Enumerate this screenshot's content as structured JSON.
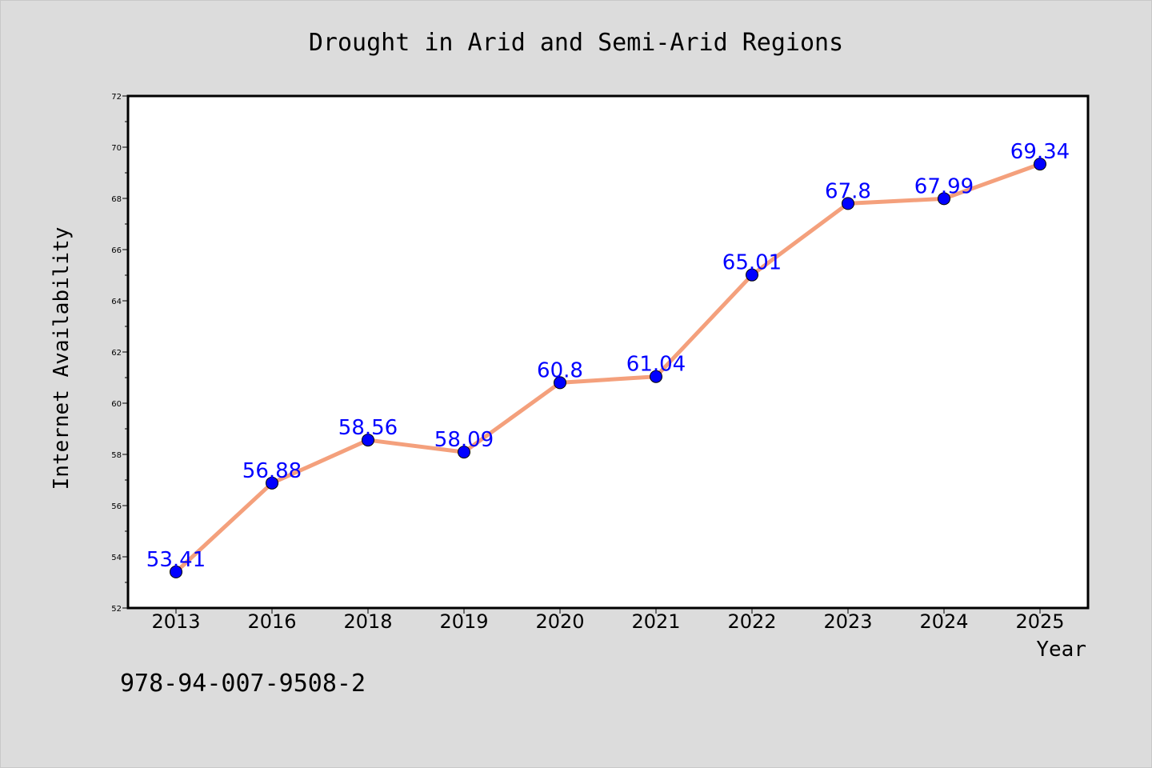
{
  "chart_data": {
    "type": "line",
    "title": "Drought in Arid and Semi-Arid Regions",
    "xlabel": "Year",
    "ylabel": "Internet Availability",
    "categories": [
      "2013",
      "2016",
      "2018",
      "2019",
      "2020",
      "2021",
      "2022",
      "2023",
      "2024",
      "2025"
    ],
    "series": [
      {
        "values": [
          53.41,
          56.88,
          58.56,
          58.09,
          60.8,
          61.04,
          65.01,
          67.8,
          67.99,
          69.34
        ],
        "data_labels": [
          "53.41",
          "56.88",
          "58.56",
          "58.09",
          "60.8",
          "61.04",
          "65.01",
          "67.8",
          "67.99",
          "69.34"
        ],
        "line_color": "#f4a07c",
        "marker_color": "#0000ff"
      }
    ],
    "ylim": [
      52,
      72
    ],
    "yticks": [
      "52",
      "54",
      "56",
      "58",
      "60",
      "62",
      "64",
      "66",
      "68",
      "70",
      "72"
    ],
    "grid": false,
    "legend": "none"
  },
  "annotation": "978-94-007-9508-2",
  "colors": {
    "background": "#dcdcdc",
    "plot_background": "#ffffff",
    "data_label": "#0000ff"
  }
}
